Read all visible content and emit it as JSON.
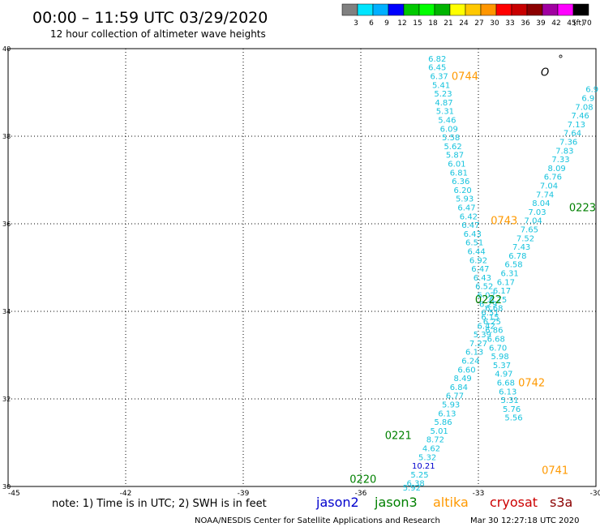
{
  "header": {
    "title": "00:00 – 11:59 UTC 03/29/2020",
    "subtitle": "12 hour collection of altimeter wave heights"
  },
  "colorbar": {
    "labels": [
      "3",
      "6",
      "9",
      "12",
      "15",
      "18",
      "21",
      "24",
      "27",
      "30",
      "33",
      "36",
      "39",
      "42",
      "45",
      "70"
    ],
    "unit": "(ft)",
    "colors": [
      "#808080",
      "#00e5ff",
      "#00b0ff",
      "#0000ff",
      "#00c800",
      "#00ff00",
      "#00b400",
      "#ffff00",
      "#ffc800",
      "#ff9600",
      "#ff0000",
      "#c80000",
      "#8b0000",
      "#a000a0",
      "#ff00ff",
      "#000000"
    ]
  },
  "footer": {
    "note": "note: 1) Time is in UTC; 2) SWH is in feet",
    "credit": "NOAA/NESDIS Center for Satellite Applications and Research",
    "timestamp": "Mar 30 12:27:18 UTC 2020"
  },
  "missions": [
    {
      "name": "jason2",
      "color": "#0000cd"
    },
    {
      "name": "jason3",
      "color": "#008000"
    },
    {
      "name": "altika",
      "color": "#ff9900"
    },
    {
      "name": "cryosat",
      "color": "#cc0000"
    },
    {
      "name": "s3a",
      "color": "#8b0000"
    }
  ],
  "chart_data": {
    "type": "scatter",
    "xlim": [
      -45,
      -30
    ],
    "ylim": [
      30,
      40
    ],
    "x_ticks": [
      -45,
      -42,
      -39,
      -36,
      -33,
      -30
    ],
    "x_tick_labels": [
      "-45",
      "-42",
      "-39",
      "-36",
      "-33",
      "-30"
    ],
    "y_ticks": [
      30,
      32,
      34,
      36,
      38,
      40
    ],
    "y_tick_labels": [
      "30",
      "32",
      "34",
      "36",
      "38",
      "40"
    ],
    "grid": true,
    "value_color": "#17c3dd",
    "points": [
      {
        "x": -34.05,
        "y": 39.78,
        "v": "6.82"
      },
      {
        "x": -34.05,
        "y": 39.58,
        "v": "6.45"
      },
      {
        "x": -34.0,
        "y": 39.38,
        "v": "6.37"
      },
      {
        "x": -33.95,
        "y": 39.18,
        "v": "5.41"
      },
      {
        "x": -33.9,
        "y": 38.98,
        "v": "5.23"
      },
      {
        "x": -33.88,
        "y": 38.78,
        "v": "4.87"
      },
      {
        "x": -33.85,
        "y": 38.58,
        "v": "5.31"
      },
      {
        "x": -33.8,
        "y": 38.38,
        "v": "5.46"
      },
      {
        "x": -33.75,
        "y": 38.18,
        "v": "6.09"
      },
      {
        "x": -33.7,
        "y": 37.98,
        "v": "5.58"
      },
      {
        "x": -33.65,
        "y": 37.78,
        "v": "5.62"
      },
      {
        "x": -33.6,
        "y": 37.58,
        "v": "5.87"
      },
      {
        "x": -33.55,
        "y": 37.38,
        "v": "6.01"
      },
      {
        "x": -33.5,
        "y": 37.18,
        "v": "6.81"
      },
      {
        "x": -33.45,
        "y": 36.98,
        "v": "6.36"
      },
      {
        "x": -33.4,
        "y": 36.78,
        "v": "6.20"
      },
      {
        "x": -33.35,
        "y": 36.58,
        "v": "5.93"
      },
      {
        "x": -33.3,
        "y": 36.38,
        "v": "6.47"
      },
      {
        "x": -33.25,
        "y": 36.18,
        "v": "6.42"
      },
      {
        "x": -33.2,
        "y": 35.98,
        "v": "6.47"
      },
      {
        "x": -33.15,
        "y": 35.78,
        "v": "6.43"
      },
      {
        "x": -33.1,
        "y": 35.58,
        "v": "6.51"
      },
      {
        "x": -33.05,
        "y": 35.38,
        "v": "6.44"
      },
      {
        "x": -33.0,
        "y": 35.18,
        "v": "6.92"
      },
      {
        "x": -32.95,
        "y": 34.98,
        "v": "6.47"
      },
      {
        "x": -32.9,
        "y": 34.78,
        "v": "6.43"
      },
      {
        "x": -32.85,
        "y": 34.58,
        "v": "6.52"
      },
      {
        "x": -32.8,
        "y": 34.38,
        "v": "6.02"
      },
      {
        "x": -32.75,
        "y": 34.18,
        "v": "6.29"
      },
      {
        "x": -32.7,
        "y": 33.98,
        "v": "6.51"
      },
      {
        "x": -32.65,
        "y": 33.78,
        "v": "6.25"
      },
      {
        "x": -32.6,
        "y": 33.58,
        "v": "6.86"
      },
      {
        "x": -32.55,
        "y": 33.38,
        "v": "6.68"
      },
      {
        "x": -32.5,
        "y": 33.18,
        "v": "6.70"
      },
      {
        "x": -32.45,
        "y": 32.98,
        "v": "5.98"
      },
      {
        "x": -32.4,
        "y": 32.78,
        "v": "5.37"
      },
      {
        "x": -32.35,
        "y": 32.58,
        "v": "4.97"
      },
      {
        "x": -32.3,
        "y": 32.38,
        "v": "6.68"
      },
      {
        "x": -32.25,
        "y": 32.18,
        "v": "6.13"
      },
      {
        "x": -32.2,
        "y": 31.98,
        "v": "5.31"
      },
      {
        "x": -32.15,
        "y": 31.78,
        "v": "5.76"
      },
      {
        "x": -32.1,
        "y": 31.58,
        "v": "5.56"
      },
      {
        "x": -30.1,
        "y": 39.08,
        "v": "6.9"
      },
      {
        "x": -30.2,
        "y": 38.88,
        "v": "6.9"
      },
      {
        "x": -30.3,
        "y": 38.68,
        "v": "7.08"
      },
      {
        "x": -30.4,
        "y": 38.48,
        "v": "7.46"
      },
      {
        "x": -30.5,
        "y": 38.28,
        "v": "7.13"
      },
      {
        "x": -30.6,
        "y": 38.08,
        "v": "7.64"
      },
      {
        "x": -30.7,
        "y": 37.88,
        "v": "7.36"
      },
      {
        "x": -30.8,
        "y": 37.68,
        "v": "7.83"
      },
      {
        "x": -30.9,
        "y": 37.48,
        "v": "7.33"
      },
      {
        "x": -31.0,
        "y": 37.28,
        "v": "8.09"
      },
      {
        "x": -31.1,
        "y": 37.08,
        "v": "6.76"
      },
      {
        "x": -31.2,
        "y": 36.88,
        "v": "7.04"
      },
      {
        "x": -31.3,
        "y": 36.68,
        "v": "7.74"
      },
      {
        "x": -31.4,
        "y": 36.48,
        "v": "8.04"
      },
      {
        "x": -31.5,
        "y": 36.28,
        "v": "7.03"
      },
      {
        "x": -31.6,
        "y": 36.08,
        "v": "7.04"
      },
      {
        "x": -31.7,
        "y": 35.88,
        "v": "7.65"
      },
      {
        "x": -31.8,
        "y": 35.68,
        "v": "7.52"
      },
      {
        "x": -31.9,
        "y": 35.48,
        "v": "7.43"
      },
      {
        "x": -32.0,
        "y": 35.28,
        "v": "6.78"
      },
      {
        "x": -32.1,
        "y": 35.08,
        "v": "6.58"
      },
      {
        "x": -32.2,
        "y": 34.88,
        "v": "6.31"
      },
      {
        "x": -32.3,
        "y": 34.68,
        "v": "6.17"
      },
      {
        "x": -32.4,
        "y": 34.48,
        "v": "6.17"
      },
      {
        "x": -32.5,
        "y": 34.28,
        "v": "6.75"
      },
      {
        "x": -32.6,
        "y": 34.08,
        "v": "6.68"
      },
      {
        "x": -32.7,
        "y": 33.88,
        "v": "6.15"
      },
      {
        "x": -32.8,
        "y": 33.68,
        "v": "6.42"
      },
      {
        "x": -32.9,
        "y": 33.48,
        "v": "5.39"
      },
      {
        "x": -33.0,
        "y": 33.28,
        "v": "7.27"
      },
      {
        "x": -33.1,
        "y": 33.08,
        "v": "6.13"
      },
      {
        "x": -33.2,
        "y": 32.88,
        "v": "6.24"
      },
      {
        "x": -33.3,
        "y": 32.68,
        "v": "6.60"
      },
      {
        "x": -33.4,
        "y": 32.48,
        "v": "8.49"
      },
      {
        "x": -33.5,
        "y": 32.28,
        "v": "6.84"
      },
      {
        "x": -33.6,
        "y": 32.08,
        "v": "6.77"
      },
      {
        "x": -33.7,
        "y": 31.88,
        "v": "5.93"
      },
      {
        "x": -33.8,
        "y": 31.68,
        "v": "6.13"
      },
      {
        "x": -33.9,
        "y": 31.48,
        "v": "5.86"
      },
      {
        "x": -34.0,
        "y": 31.28,
        "v": "5.01"
      },
      {
        "x": -34.1,
        "y": 31.08,
        "v": "8.72"
      },
      {
        "x": -34.2,
        "y": 30.88,
        "v": "4.62"
      },
      {
        "x": -34.3,
        "y": 30.68,
        "v": "5.32"
      },
      {
        "x": -34.4,
        "y": 30.48,
        "v": "10.21",
        "color": "#0000cd"
      },
      {
        "x": -34.5,
        "y": 30.28,
        "v": "5.25"
      },
      {
        "x": -34.6,
        "y": 30.08,
        "v": "6.38"
      },
      {
        "x": -34.7,
        "y": 29.98,
        "v": "5.92"
      }
    ],
    "time_labels": [
      {
        "x": -33.0,
        "y": 39.38,
        "text": "0744",
        "color": "#ff9900"
      },
      {
        "x": -30.0,
        "y": 36.38,
        "text": "0223",
        "color": "#008000"
      },
      {
        "x": -32.0,
        "y": 36.08,
        "text": "0743",
        "color": "#ff9900"
      },
      {
        "x": -32.4,
        "y": 34.28,
        "text": "0222",
        "color": "#008000"
      },
      {
        "x": -31.3,
        "y": 32.38,
        "text": "0742",
        "color": "#ff9900"
      },
      {
        "x": -34.7,
        "y": 31.18,
        "text": "0221",
        "color": "#008000"
      },
      {
        "x": -30.7,
        "y": 30.38,
        "text": "0741",
        "color": "#ff9900"
      },
      {
        "x": -35.6,
        "y": 30.18,
        "text": "0220",
        "color": "#008000"
      }
    ],
    "symbols": [
      {
        "x": -30.9,
        "y": 39.68,
        "text": "°"
      },
      {
        "x": -31.3,
        "y": 39.38,
        "text": "O"
      }
    ]
  }
}
